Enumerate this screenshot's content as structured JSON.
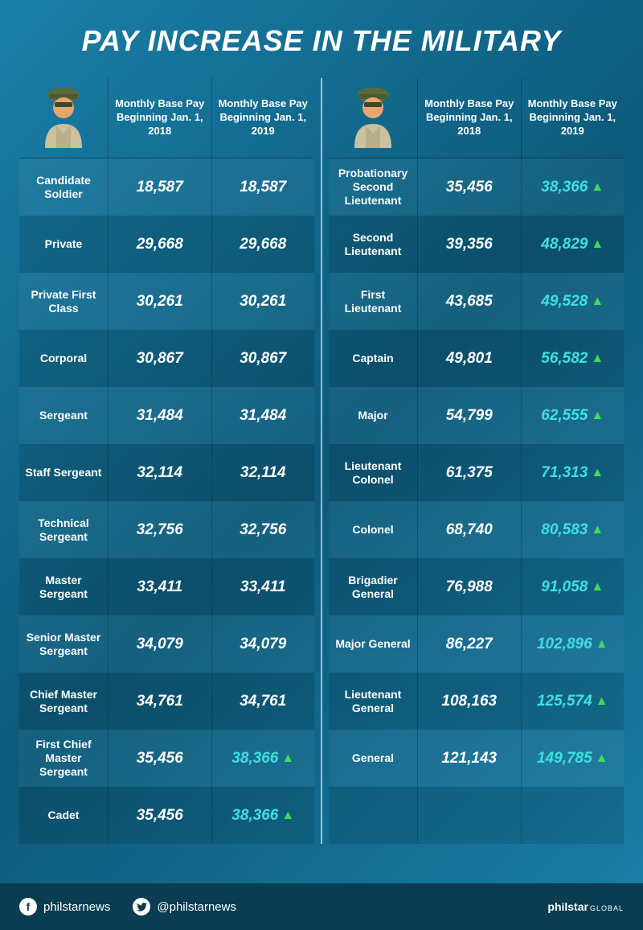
{
  "title": "PAY INCREASE IN THE MILITARY",
  "columns": {
    "col2018": "Monthly Base Pay Beginning Jan. 1, 2018",
    "col2019": "Monthly Base Pay Beginning Jan. 1, 2019"
  },
  "colors": {
    "bg_gradient_start": "#1a7fa8",
    "bg_gradient_mid": "#0d5a7a",
    "row_alt": "rgba(0,0,0,0.12)",
    "highlight_text": "#3fe0e0",
    "arrow": "#3fdc5c",
    "footer_bg": "#0a3d52",
    "text": "#ffffff"
  },
  "left": [
    {
      "rank": "Candidate Soldier",
      "v2018": "18,587",
      "v2019": "18,587",
      "up": false
    },
    {
      "rank": "Private",
      "v2018": "29,668",
      "v2019": "29,668",
      "up": false
    },
    {
      "rank": "Private First Class",
      "v2018": "30,261",
      "v2019": "30,261",
      "up": false
    },
    {
      "rank": "Corporal",
      "v2018": "30,867",
      "v2019": "30,867",
      "up": false
    },
    {
      "rank": "Sergeant",
      "v2018": "31,484",
      "v2019": "31,484",
      "up": false
    },
    {
      "rank": "Staff Sergeant",
      "v2018": "32,114",
      "v2019": "32,114",
      "up": false
    },
    {
      "rank": "Technical Sergeant",
      "v2018": "32,756",
      "v2019": "32,756",
      "up": false
    },
    {
      "rank": "Master Sergeant",
      "v2018": "33,411",
      "v2019": "33,411",
      "up": false
    },
    {
      "rank": "Senior Master Sergeant",
      "v2018": "34,079",
      "v2019": "34,079",
      "up": false
    },
    {
      "rank": "Chief Master Sergeant",
      "v2018": "34,761",
      "v2019": "34,761",
      "up": false
    },
    {
      "rank": "First Chief Master Sergeant",
      "v2018": "35,456",
      "v2019": "38,366",
      "up": true
    },
    {
      "rank": "Cadet",
      "v2018": "35,456",
      "v2019": "38,366",
      "up": true
    }
  ],
  "right": [
    {
      "rank": "Probationary Second Lieutenant",
      "v2018": "35,456",
      "v2019": "38,366",
      "up": true
    },
    {
      "rank": "Second Lieutenant",
      "v2018": "39,356",
      "v2019": "48,829",
      "up": true
    },
    {
      "rank": "First Lieutenant",
      "v2018": "43,685",
      "v2019": "49,528",
      "up": true
    },
    {
      "rank": "Captain",
      "v2018": "49,801",
      "v2019": "56,582",
      "up": true
    },
    {
      "rank": "Major",
      "v2018": "54,799",
      "v2019": "62,555",
      "up": true
    },
    {
      "rank": "Lieutenant Colonel",
      "v2018": "61,375",
      "v2019": "71,313",
      "up": true
    },
    {
      "rank": "Colonel",
      "v2018": "68,740",
      "v2019": "80,583",
      "up": true
    },
    {
      "rank": "Brigadier General",
      "v2018": "76,988",
      "v2019": "91,058",
      "up": true
    },
    {
      "rank": "Major General",
      "v2018": "86,227",
      "v2019": "102,896",
      "up": true
    },
    {
      "rank": "Lieutenant General",
      "v2018": "108,163",
      "v2019": "125,574",
      "up": true
    },
    {
      "rank": "General",
      "v2018": "121,143",
      "v2019": "149,785",
      "up": true
    },
    {
      "rank": "",
      "v2018": "",
      "v2019": "",
      "up": false
    }
  ],
  "footer": {
    "fb": "philstarnews",
    "tw": "@philstarnews",
    "brand_bold": "philstar",
    "brand_light": "GLOBAL"
  }
}
